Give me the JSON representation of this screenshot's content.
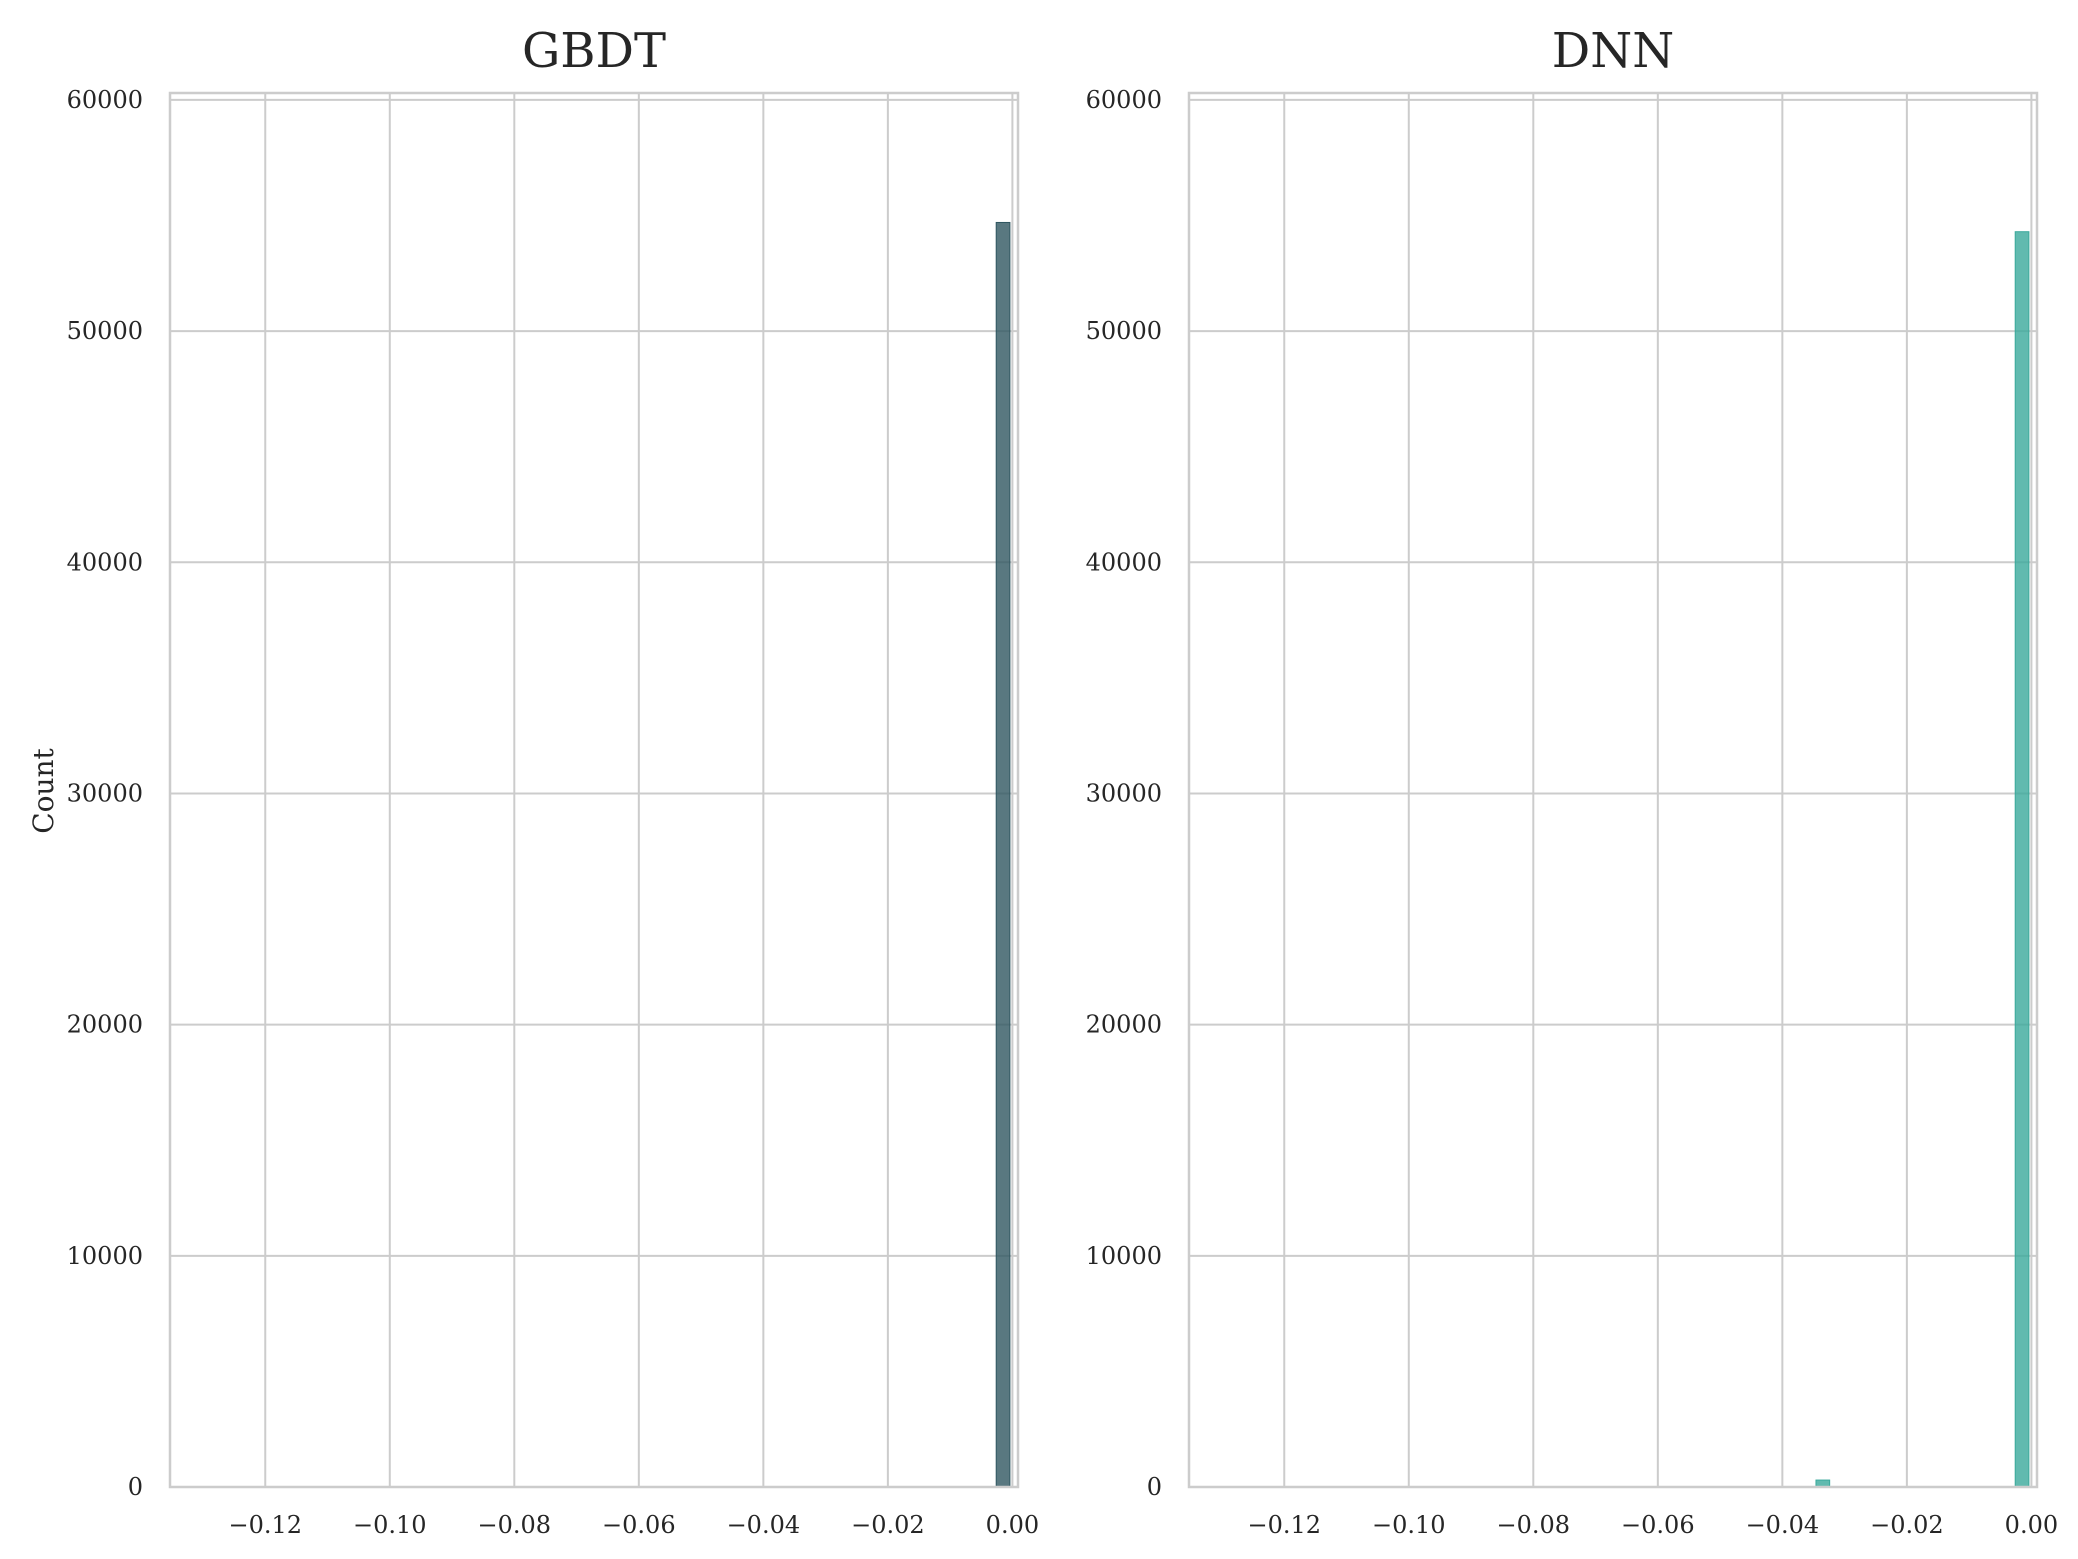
{
  "figure": {
    "background": "#ffffff",
    "grid_color": "#cccccc",
    "ylabel": "Count"
  },
  "chart_data": [
    {
      "type": "bar",
      "title": "GBDT",
      "xlabel": "",
      "ylabel": "Count",
      "xlim": [
        -0.1353,
        0.0009
      ],
      "ylim": [
        0,
        60300
      ],
      "xticks": [
        -0.12,
        -0.1,
        -0.08,
        -0.06,
        -0.04,
        -0.02,
        0.0
      ],
      "xtick_labels": [
        "−0.12",
        "−0.10",
        "−0.08",
        "−0.06",
        "−0.04",
        "−0.02",
        "0.00"
      ],
      "yticks": [
        0,
        10000,
        20000,
        30000,
        40000,
        50000,
        60000
      ],
      "ytick_labels": [
        "0",
        "10000",
        "20000",
        "30000",
        "40000",
        "50000",
        "60000"
      ],
      "grid": true,
      "color": "#2f5660",
      "bins": [
        {
          "x0": -0.0026,
          "x1": -0.0004,
          "count": 54700
        }
      ]
    },
    {
      "type": "bar",
      "title": "DNN",
      "xlabel": "",
      "ylabel": "",
      "xlim": [
        -0.1353,
        0.0009
      ],
      "ylim": [
        0,
        60300
      ],
      "xticks": [
        -0.12,
        -0.1,
        -0.08,
        -0.06,
        -0.04,
        -0.02,
        0.0
      ],
      "xtick_labels": [
        "−0.12",
        "−0.10",
        "−0.08",
        "−0.06",
        "−0.04",
        "−0.02",
        "0.00"
      ],
      "yticks": [
        0,
        10000,
        20000,
        30000,
        40000,
        50000,
        60000
      ],
      "ytick_labels": [
        "0",
        "10000",
        "20000",
        "30000",
        "40000",
        "50000",
        "60000"
      ],
      "grid": true,
      "color": "#3aa99b",
      "bins": [
        {
          "x0": -0.0346,
          "x1": -0.0324,
          "count": 300
        },
        {
          "x0": -0.0026,
          "x1": -0.0004,
          "count": 54300
        }
      ]
    }
  ]
}
